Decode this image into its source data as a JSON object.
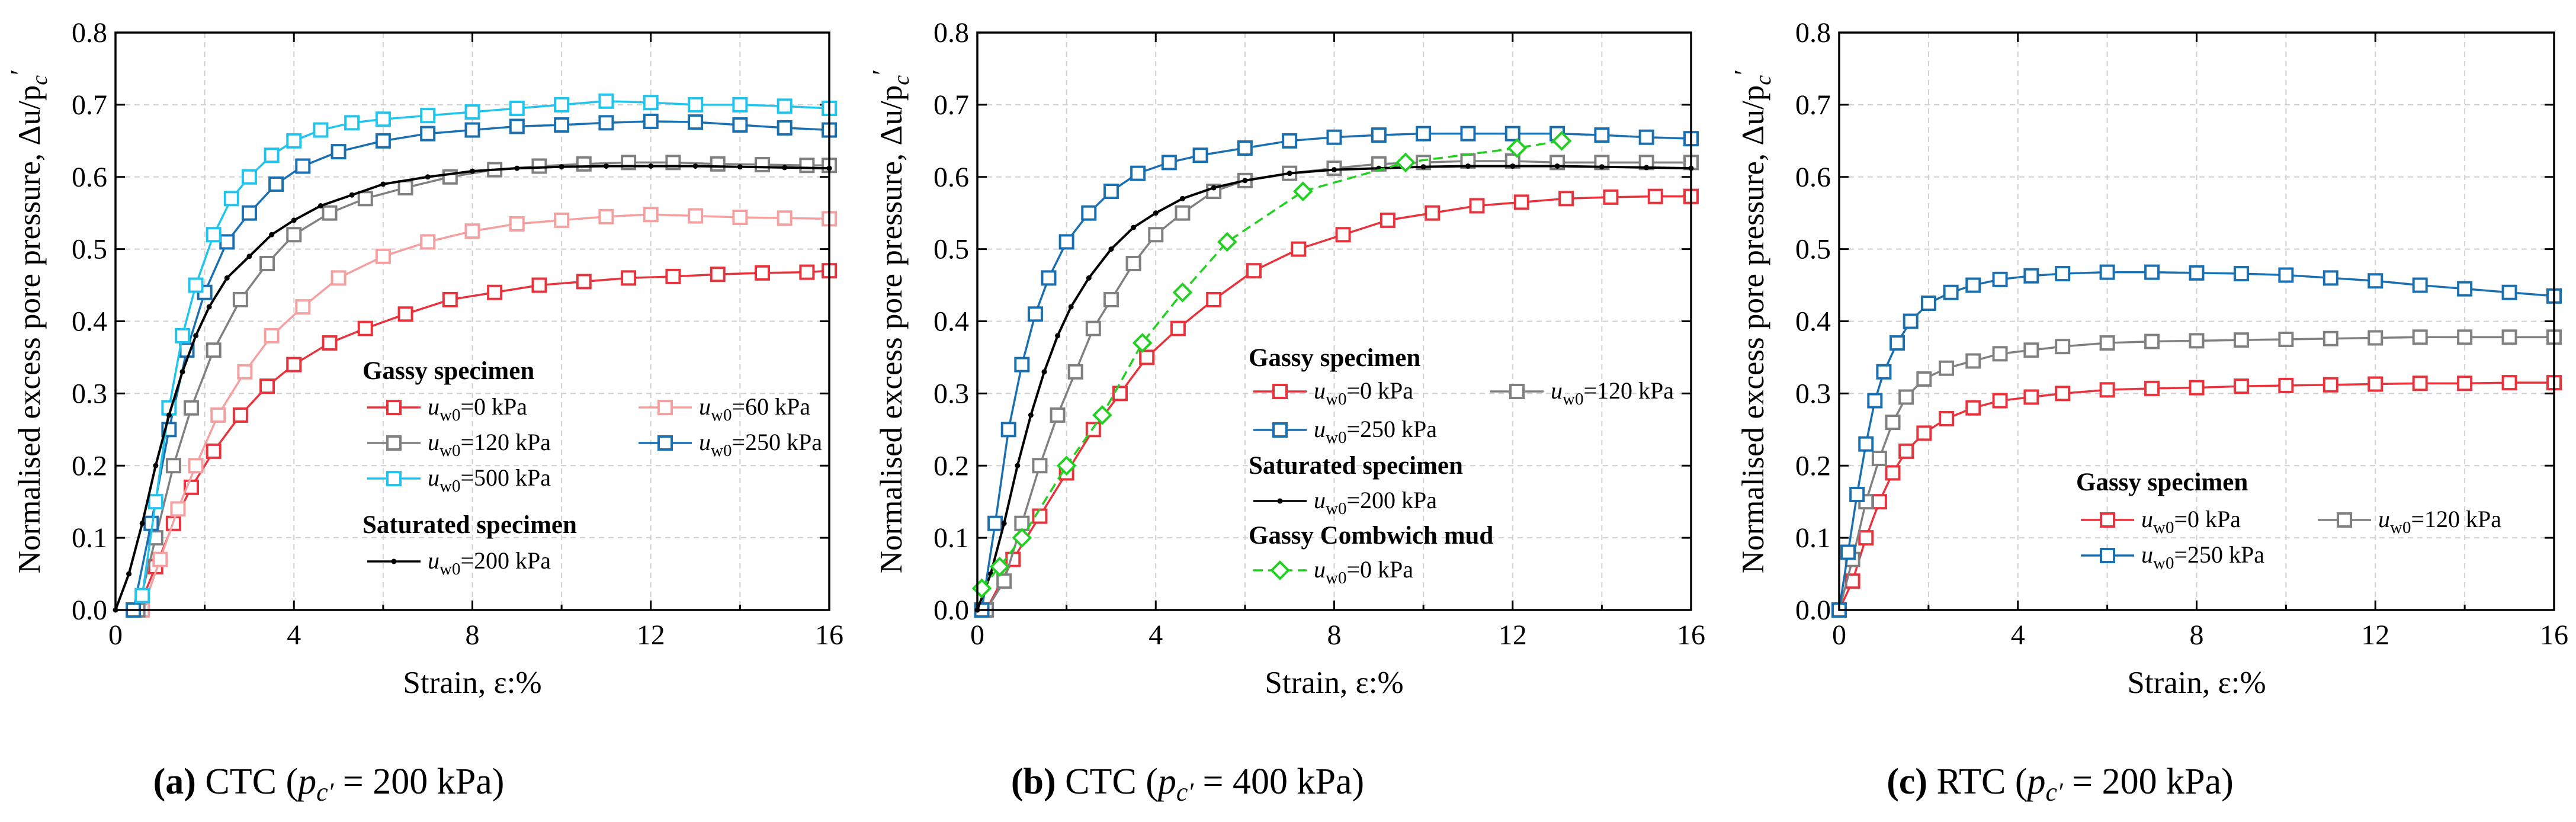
{
  "figure": {
    "ylabel": "Normalised excess pore pressure, Δu/p",
    "ylabel_sub": "c",
    "ylabel_prime": "′",
    "xlabel": "Strain, ε:%"
  },
  "colors": {
    "red": "#e8323c",
    "pink": "#f5a0a0",
    "grey": "#808080",
    "blue": "#1a6fb0",
    "cyan": "#20c4ec",
    "black": "#000000",
    "green": "#22d022",
    "grid": "#d0d0d0"
  },
  "panels": [
    {
      "caption": {
        "letter": "(a)",
        "test": "CTC",
        "prefix": "(",
        "p": "p",
        "sub": "c′",
        "value": "= 200 kPa)"
      },
      "legend": {
        "groups": [
          {
            "title": "Gassy specimen"
          },
          {
            "title": "Saturated specimen"
          }
        ],
        "entries": [
          {
            "series": "u0",
            "u": "u",
            "sub": "w0",
            "value": "=0 kPa"
          },
          {
            "series": "u60",
            "u": "u",
            "sub": "w0",
            "value": "=60 kPa"
          },
          {
            "series": "u120",
            "u": "u",
            "sub": "w0",
            "value": "=120 kPa"
          },
          {
            "series": "u250",
            "u": "u",
            "sub": "w0",
            "value": "=250 kPa"
          },
          {
            "series": "u500",
            "u": "u",
            "sub": "w0",
            "value": "=500 kPa"
          },
          {
            "series": "sat200",
            "u": "u",
            "sub": "w0",
            "value": "=200 kPa"
          }
        ]
      }
    },
    {
      "caption": {
        "letter": "(b)",
        "test": "CTC",
        "prefix": "(",
        "p": "p",
        "sub": "c′",
        "value": "= 400 kPa)"
      },
      "legend": {
        "groups": [
          {
            "title": "Gassy specimen"
          },
          {
            "title": "Saturated specimen"
          },
          {
            "title": "Gassy Combwich mud"
          }
        ],
        "entries": [
          {
            "series": "u0",
            "u": "u",
            "sub": "w0",
            "value": "=0 kPa"
          },
          {
            "series": "u120",
            "u": "u",
            "sub": "w0",
            "value": "=120 kPa"
          },
          {
            "series": "u250",
            "u": "u",
            "sub": "w0",
            "value": "=250 kPa"
          },
          {
            "series": "sat200",
            "u": "u",
            "sub": "w0",
            "value": "=200 kPa"
          },
          {
            "series": "comb0",
            "u": "u",
            "sub": "w0",
            "value": "=0 kPa"
          }
        ]
      }
    },
    {
      "caption": {
        "letter": "(c)",
        "test": "RTC",
        "prefix": "(",
        "p": "p",
        "sub": "c′",
        "value": "= 200 kPa)"
      },
      "legend": {
        "groups": [
          {
            "title": "Gassy specimen"
          }
        ],
        "entries": [
          {
            "series": "u0",
            "u": "u",
            "sub": "w0",
            "value": "=0 kPa"
          },
          {
            "series": "u120",
            "u": "u",
            "sub": "w0",
            "value": "=120 kPa"
          },
          {
            "series": "u250",
            "u": "u",
            "sub": "w0",
            "value": "=250 kPa"
          }
        ]
      }
    }
  ],
  "chart_data": [
    {
      "type": "line",
      "title": "(a) CTC (pc′ = 200 kPa)",
      "xlabel": "Strain, ε:%",
      "ylabel": "Normalised excess pore pressure, Δu/pc′",
      "xlim": [
        0,
        16
      ],
      "ylim": [
        0,
        0.8
      ],
      "xticks": [
        "0",
        "4",
        "8",
        "12",
        "16"
      ],
      "yticks": [
        "0.0",
        "0.1",
        "0.2",
        "0.3",
        "0.4",
        "0.5",
        "0.6",
        "0.7",
        "0.8"
      ],
      "grid": true,
      "series": [
        {
          "id": "u0",
          "name": "uw0=0 kPa (Gassy)",
          "color": "red",
          "marker": "square",
          "x": [
            0.5,
            0.9,
            1.3,
            1.7,
            2.2,
            2.8,
            3.4,
            4.0,
            4.8,
            5.6,
            6.5,
            7.5,
            8.5,
            9.5,
            10.5,
            11.5,
            12.5,
            13.5,
            14.5,
            15.5,
            16
          ],
          "y": [
            0.0,
            0.06,
            0.12,
            0.17,
            0.22,
            0.27,
            0.31,
            0.34,
            0.37,
            0.39,
            0.41,
            0.43,
            0.44,
            0.45,
            0.455,
            0.46,
            0.462,
            0.465,
            0.467,
            0.468,
            0.47
          ]
        },
        {
          "id": "u60",
          "name": "uw0=60 kPa (Gassy)",
          "color": "pink",
          "marker": "square",
          "x": [
            0.6,
            1.0,
            1.4,
            1.8,
            2.3,
            2.9,
            3.5,
            4.2,
            5.0,
            6.0,
            7.0,
            8.0,
            9.0,
            10.0,
            11.0,
            12.0,
            13.0,
            14.0,
            15.0,
            16.0
          ],
          "y": [
            0.0,
            0.07,
            0.14,
            0.2,
            0.27,
            0.33,
            0.38,
            0.42,
            0.46,
            0.49,
            0.51,
            0.525,
            0.535,
            0.54,
            0.545,
            0.548,
            0.546,
            0.544,
            0.543,
            0.542
          ]
        },
        {
          "id": "u120",
          "name": "uw0=120 kPa (Gassy)",
          "color": "grey",
          "marker": "square",
          "x": [
            0.5,
            0.9,
            1.3,
            1.7,
            2.2,
            2.8,
            3.4,
            4.0,
            4.8,
            5.6,
            6.5,
            7.5,
            8.5,
            9.5,
            10.5,
            11.5,
            12.5,
            13.5,
            14.5,
            15.5,
            16
          ],
          "y": [
            0.0,
            0.1,
            0.2,
            0.28,
            0.36,
            0.43,
            0.48,
            0.52,
            0.55,
            0.57,
            0.585,
            0.6,
            0.61,
            0.615,
            0.618,
            0.62,
            0.62,
            0.618,
            0.617,
            0.616,
            0.616
          ]
        },
        {
          "id": "u250",
          "name": "uw0=250 kPa (Gassy)",
          "color": "blue",
          "marker": "square",
          "x": [
            0.4,
            0.8,
            1.2,
            1.6,
            2.0,
            2.5,
            3.0,
            3.6,
            4.2,
            5.0,
            6.0,
            7.0,
            8.0,
            9.0,
            10.0,
            11.0,
            12.0,
            13.0,
            14.0,
            15.0,
            16.0
          ],
          "y": [
            0.0,
            0.12,
            0.25,
            0.36,
            0.44,
            0.51,
            0.55,
            0.59,
            0.615,
            0.635,
            0.65,
            0.66,
            0.665,
            0.67,
            0.672,
            0.675,
            0.677,
            0.676,
            0.672,
            0.668,
            0.665
          ]
        },
        {
          "id": "u500",
          "name": "uw0=500 kPa (Gassy)",
          "color": "cyan",
          "marker": "square",
          "x": [
            0.6,
            0.9,
            1.2,
            1.5,
            1.8,
            2.2,
            2.6,
            3.0,
            3.5,
            4.0,
            4.6,
            5.3,
            6.0,
            7.0,
            8.0,
            9.0,
            10.0,
            11.0,
            12.0,
            13.0,
            14.0,
            15.0,
            16.0
          ],
          "y": [
            0.02,
            0.15,
            0.28,
            0.38,
            0.45,
            0.52,
            0.57,
            0.6,
            0.63,
            0.65,
            0.665,
            0.675,
            0.68,
            0.685,
            0.69,
            0.695,
            0.7,
            0.705,
            0.703,
            0.7,
            0.7,
            0.698,
            0.695
          ]
        },
        {
          "id": "sat200",
          "name": "uw0=200 kPa (Saturated)",
          "color": "black",
          "marker": "dot",
          "x": [
            0,
            0.3,
            0.6,
            0.9,
            1.2,
            1.5,
            1.8,
            2.1,
            2.5,
            3.0,
            3.5,
            4.0,
            4.6,
            5.3,
            6.0,
            7.0,
            8.0,
            9.0,
            10.0,
            11.0,
            12.0,
            13.0,
            14.0,
            15.0,
            16.0
          ],
          "y": [
            0.0,
            0.05,
            0.12,
            0.2,
            0.27,
            0.33,
            0.38,
            0.42,
            0.46,
            0.49,
            0.52,
            0.54,
            0.56,
            0.575,
            0.59,
            0.6,
            0.608,
            0.612,
            0.614,
            0.615,
            0.615,
            0.615,
            0.614,
            0.613,
            0.612
          ]
        }
      ]
    },
    {
      "type": "line",
      "title": "(b) CTC (pc′ = 400 kPa)",
      "xlabel": "Strain, ε:%",
      "ylabel": "Normalised excess pore pressure, Δu/pc′",
      "xlim": [
        0,
        16
      ],
      "ylim": [
        0,
        0.8
      ],
      "xticks": [
        "0",
        "4",
        "8",
        "12",
        "16"
      ],
      "yticks": [
        "0.0",
        "0.1",
        "0.2",
        "0.3",
        "0.4",
        "0.5",
        "0.6",
        "0.7",
        "0.8"
      ],
      "grid": true,
      "series": [
        {
          "id": "u0",
          "name": "uw0=0 kPa (Gassy)",
          "color": "red",
          "marker": "square",
          "x": [
            0.2,
            0.8,
            1.4,
            2.0,
            2.6,
            3.2,
            3.8,
            4.5,
            5.3,
            6.2,
            7.2,
            8.2,
            9.2,
            10.2,
            11.2,
            12.2,
            13.2,
            14.2,
            15.2,
            16.0
          ],
          "y": [
            0.0,
            0.07,
            0.13,
            0.19,
            0.25,
            0.3,
            0.35,
            0.39,
            0.43,
            0.47,
            0.5,
            0.52,
            0.54,
            0.55,
            0.56,
            0.565,
            0.57,
            0.572,
            0.573,
            0.573
          ]
        },
        {
          "id": "u120",
          "name": "uw0=120 kPa (Gassy)",
          "color": "grey",
          "marker": "square",
          "x": [
            0.2,
            0.6,
            1.0,
            1.4,
            1.8,
            2.2,
            2.6,
            3.0,
            3.5,
            4.0,
            4.6,
            5.3,
            6.0,
            7.0,
            8.0,
            9.0,
            10.0,
            11.0,
            12.0,
            13.0,
            14.0,
            15.0,
            16.0
          ],
          "y": [
            0.0,
            0.04,
            0.12,
            0.2,
            0.27,
            0.33,
            0.39,
            0.43,
            0.48,
            0.52,
            0.55,
            0.58,
            0.595,
            0.605,
            0.612,
            0.618,
            0.62,
            0.622,
            0.622,
            0.62,
            0.62,
            0.62,
            0.62
          ]
        },
        {
          "id": "u250",
          "name": "uw0=250 kPa (Gassy)",
          "color": "blue",
          "marker": "square",
          "x": [
            0.1,
            0.4,
            0.7,
            1.0,
            1.3,
            1.6,
            2.0,
            2.5,
            3.0,
            3.6,
            4.3,
            5.0,
            6.0,
            7.0,
            8.0,
            9.0,
            10.0,
            11.0,
            12.0,
            13.0,
            14.0,
            15.0,
            16.0
          ],
          "y": [
            0.0,
            0.12,
            0.25,
            0.34,
            0.41,
            0.46,
            0.51,
            0.55,
            0.58,
            0.605,
            0.62,
            0.63,
            0.64,
            0.65,
            0.655,
            0.658,
            0.66,
            0.66,
            0.66,
            0.66,
            0.658,
            0.655,
            0.653
          ]
        },
        {
          "id": "sat200",
          "name": "uw0=200 kPa (Saturated)",
          "color": "black",
          "marker": "dot",
          "x": [
            0,
            0.3,
            0.6,
            0.9,
            1.2,
            1.5,
            1.8,
            2.1,
            2.5,
            3.0,
            3.5,
            4.0,
            4.6,
            5.3,
            6.0,
            7.0,
            8.0,
            9.0,
            10.0,
            11.0,
            12.0,
            13.0,
            14.0,
            15.0,
            16.0
          ],
          "y": [
            0.0,
            0.05,
            0.12,
            0.2,
            0.27,
            0.33,
            0.38,
            0.42,
            0.46,
            0.5,
            0.53,
            0.55,
            0.57,
            0.585,
            0.595,
            0.605,
            0.61,
            0.612,
            0.614,
            0.615,
            0.615,
            0.615,
            0.614,
            0.613,
            0.612
          ]
        },
        {
          "id": "comb0",
          "name": "uw0=0 kPa (Gassy Combwich mud)",
          "color": "green",
          "marker": "diamond",
          "dashed": true,
          "x": [
            0.1,
            0.5,
            1.0,
            2.0,
            2.8,
            3.7,
            4.6,
            5.6,
            7.3,
            9.6,
            12.1,
            13.1
          ],
          "y": [
            0.03,
            0.06,
            0.1,
            0.2,
            0.27,
            0.37,
            0.44,
            0.51,
            0.58,
            0.62,
            0.64,
            0.65
          ]
        }
      ]
    },
    {
      "type": "line",
      "title": "(c) RTC (pc′ = 200 kPa)",
      "xlabel": "Strain, ε:%",
      "ylabel": "Normalised excess pore pressure, Δu/pc′",
      "xlim": [
        0,
        16
      ],
      "ylim": [
        0,
        0.8
      ],
      "xticks": [
        "0",
        "4",
        "8",
        "12",
        "16"
      ],
      "yticks": [
        "0.0",
        "0.1",
        "0.2",
        "0.3",
        "0.4",
        "0.5",
        "0.6",
        "0.7",
        "0.8"
      ],
      "grid": true,
      "series": [
        {
          "id": "u0",
          "name": "uw0=0 kPa (Gassy)",
          "color": "red",
          "marker": "square",
          "x": [
            0.0,
            0.3,
            0.6,
            0.9,
            1.2,
            1.5,
            1.9,
            2.4,
            3.0,
            3.6,
            4.3,
            5.0,
            6.0,
            7.0,
            8.0,
            9.0,
            10.0,
            11.0,
            12.0,
            13.0,
            14.0,
            15.0,
            16.0
          ],
          "y": [
            0.0,
            0.04,
            0.1,
            0.15,
            0.19,
            0.22,
            0.245,
            0.265,
            0.28,
            0.29,
            0.295,
            0.3,
            0.305,
            0.307,
            0.308,
            0.31,
            0.311,
            0.312,
            0.313,
            0.314,
            0.314,
            0.315,
            0.315
          ]
        },
        {
          "id": "u120",
          "name": "uw0=120 kPa (Gassy)",
          "color": "grey",
          "marker": "square",
          "x": [
            0.0,
            0.3,
            0.6,
            0.9,
            1.2,
            1.5,
            1.9,
            2.4,
            3.0,
            3.6,
            4.3,
            5.0,
            6.0,
            7.0,
            8.0,
            9.0,
            10.0,
            11.0,
            12.0,
            13.0,
            14.0,
            15.0,
            16.0
          ],
          "y": [
            0.0,
            0.07,
            0.15,
            0.21,
            0.26,
            0.295,
            0.32,
            0.335,
            0.345,
            0.355,
            0.36,
            0.365,
            0.37,
            0.372,
            0.373,
            0.374,
            0.375,
            0.376,
            0.377,
            0.378,
            0.378,
            0.378,
            0.378
          ]
        },
        {
          "id": "u250",
          "name": "uw0=250 kPa (Gassy)",
          "color": "blue",
          "marker": "square",
          "x": [
            0.0,
            0.2,
            0.4,
            0.6,
            0.8,
            1.0,
            1.3,
            1.6,
            2.0,
            2.5,
            3.0,
            3.6,
            4.3,
            5.0,
            6.0,
            7.0,
            8.0,
            9.0,
            10.0,
            11.0,
            12.0,
            13.0,
            14.0,
            15.0,
            16.0
          ],
          "y": [
            0.0,
            0.08,
            0.16,
            0.23,
            0.29,
            0.33,
            0.37,
            0.4,
            0.425,
            0.44,
            0.45,
            0.458,
            0.463,
            0.466,
            0.468,
            0.468,
            0.467,
            0.466,
            0.464,
            0.46,
            0.456,
            0.45,
            0.445,
            0.44,
            0.435
          ]
        }
      ]
    }
  ]
}
